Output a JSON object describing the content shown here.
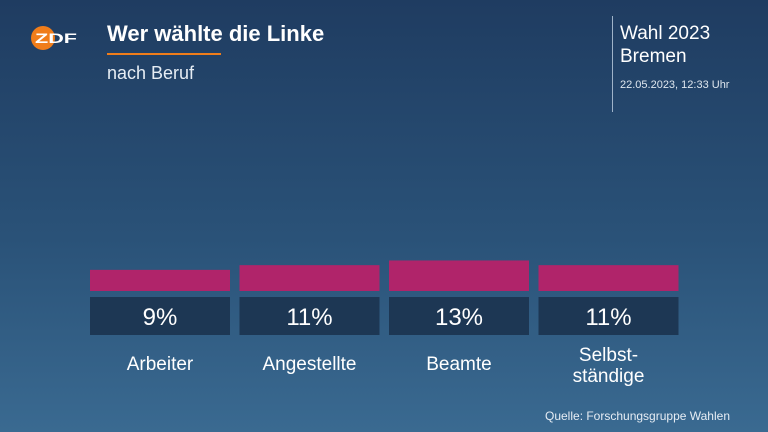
{
  "header": {
    "logo_text": "ZDF",
    "title": "Wer wählte die Linke",
    "subtitle": "nach Beruf",
    "election_line1": "Wahl 2023",
    "election_line2": "Bremen",
    "timestamp": "22.05.2023, 12:33 Uhr"
  },
  "footer": {
    "source": "Quelle: Forschungsgruppe Wahlen"
  },
  "colors": {
    "bar": "#b0246a",
    "value_box": "#1d3754",
    "accent": "#f07d1a"
  },
  "chart_data": {
    "type": "bar",
    "title": "Wer wählte die Linke",
    "subtitle": "nach Beruf",
    "categories": [
      "Arbeiter",
      "Angestellte",
      "Beamte",
      "Selbst-\nständige"
    ],
    "values": [
      9,
      11,
      13,
      11
    ],
    "value_labels": [
      "9%",
      "11%",
      "13%",
      "11%"
    ],
    "unit": "%",
    "ylim": [
      0,
      100
    ],
    "grid": false,
    "legend": "none"
  }
}
